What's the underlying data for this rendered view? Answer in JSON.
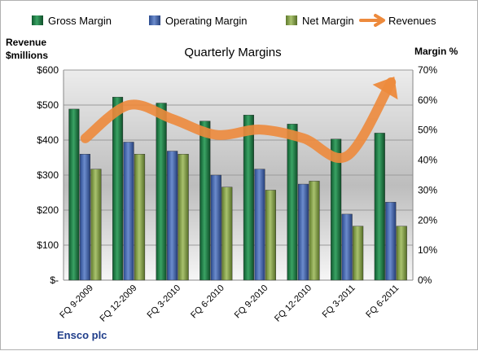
{
  "chart_data": {
    "type": "bar",
    "title": "Quarterly Margins",
    "company": "Ensco plc",
    "categories": [
      "FQ 9-2009",
      "FQ 12-2009",
      "FQ 3-2010",
      "FQ 6-2010",
      "FQ 9-2010",
      "FQ 12-2010",
      "FQ 3-2011",
      "FQ 6-2011"
    ],
    "series": [
      {
        "name": "Gross Margin",
        "kind": "bar",
        "axis": "right",
        "unit": "%",
        "color": "#2e8b57",
        "values": [
          57,
          61,
          59,
          53,
          55,
          52,
          47,
          49
        ]
      },
      {
        "name": "Operating Margin",
        "kind": "bar",
        "axis": "right",
        "unit": "%",
        "color": "#5273b8",
        "values": [
          42,
          46,
          43,
          35,
          37,
          32,
          22,
          26
        ]
      },
      {
        "name": "Net Margin",
        "kind": "bar",
        "axis": "right",
        "unit": "%",
        "color": "#92ad5a",
        "values": [
          37,
          42,
          42,
          31,
          30,
          33,
          18,
          18
        ]
      },
      {
        "name": "Revenues",
        "kind": "line",
        "axis": "left",
        "unit": "$millions",
        "color": "#ed8a3c",
        "values": [
          405,
          500,
          460,
          415,
          430,
          405,
          355,
          565
        ]
      }
    ],
    "left_axis": {
      "label": [
        "Revenue",
        "$millions"
      ],
      "ylim": [
        0,
        600
      ],
      "ticks": [
        "$-",
        "$100",
        "$200",
        "$300",
        "$400",
        "$500",
        "$600"
      ]
    },
    "right_axis": {
      "label": "Margin %",
      "ylim": [
        0,
        70
      ],
      "ticks": [
        "0%",
        "10%",
        "20%",
        "30%",
        "40%",
        "50%",
        "60%",
        "70%"
      ]
    },
    "grid": true,
    "legend": "top"
  }
}
